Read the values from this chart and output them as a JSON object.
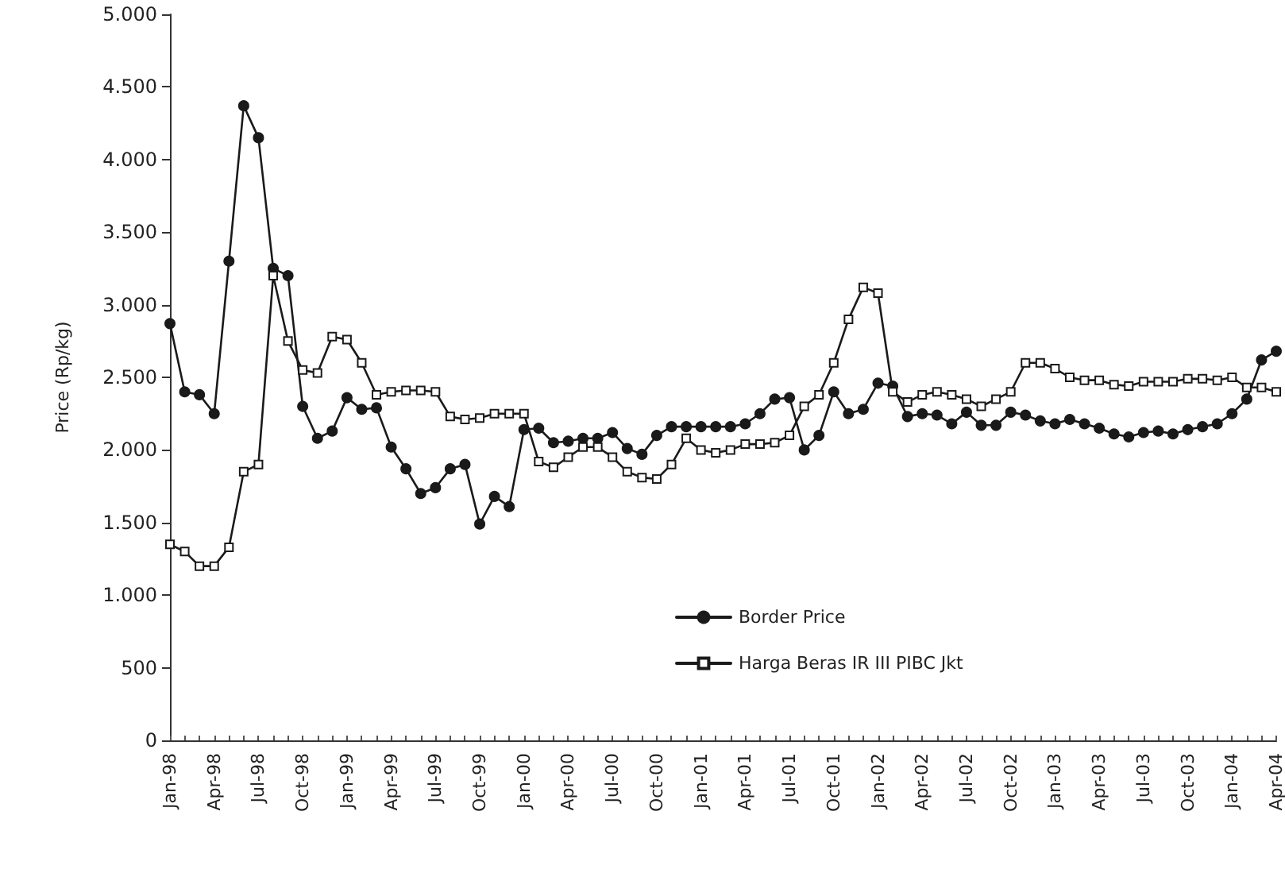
{
  "chart_data": {
    "type": "line",
    "ylabel": "Price (Rp/kg)",
    "categories": [
      "Jan-98",
      null,
      null,
      "Apr-98",
      null,
      null,
      "Jul-98",
      null,
      null,
      "Oct-98",
      null,
      null,
      "Jan-99",
      null,
      null,
      "Apr-99",
      null,
      null,
      "Jul-99",
      null,
      null,
      "Oct-99",
      null,
      null,
      "Jan-00",
      null,
      null,
      "Apr-00",
      null,
      null,
      "Jul-00",
      null,
      null,
      "Oct-00",
      null,
      null,
      "Jan-01",
      null,
      null,
      "Apr-01",
      null,
      null,
      "Jul-01",
      null,
      null,
      "Oct-01",
      null,
      null,
      "Jan-02",
      null,
      null,
      "Apr-02",
      null,
      null,
      "Jul-02",
      null,
      null,
      "Oct-02",
      null,
      null,
      "Jan-03",
      null,
      null,
      "Apr-03",
      null,
      null,
      "Jul-03",
      null,
      null,
      "Oct-03",
      null,
      null,
      "Jan-04",
      null,
      null,
      "Apr-04"
    ],
    "series": [
      {
        "name": "Border Price",
        "color": "#1a1a1a",
        "marker": "circle",
        "values": [
          2870,
          2400,
          2380,
          2250,
          3300,
          4370,
          4150,
          3250,
          3200,
          2300,
          2080,
          2130,
          2360,
          2280,
          2290,
          2020,
          1870,
          1700,
          1740,
          1870,
          1900,
          1490,
          1680,
          1610,
          2140,
          2150,
          2050,
          2060,
          2080,
          2080,
          2120,
          2010,
          1970,
          2100,
          2160,
          2160,
          2160,
          2160,
          2160,
          2180,
          2250,
          2350,
          2360,
          2000,
          2100,
          2400,
          2250,
          2280,
          2460,
          2440,
          2230,
          2250,
          2240,
          2180,
          2260,
          2170,
          2170,
          2260,
          2240,
          2200,
          2180,
          2210,
          2180,
          2150,
          2110,
          2090,
          2120,
          2130,
          2110,
          2140,
          2160,
          2180,
          2250,
          2350,
          2620,
          2680
        ]
      },
      {
        "name": "Harga Beras IR III PIBC Jkt",
        "color": "#1a1a1a",
        "marker": "square",
        "values": [
          1350,
          1300,
          1200,
          1200,
          1330,
          1850,
          1900,
          3200,
          2750,
          2550,
          2530,
          2780,
          2760,
          2600,
          2380,
          2400,
          2410,
          2410,
          2400,
          2230,
          2210,
          2220,
          2250,
          2250,
          2250,
          1920,
          1880,
          1950,
          2020,
          2020,
          1950,
          1850,
          1810,
          1800,
          1900,
          2080,
          2000,
          1980,
          2000,
          2040,
          2040,
          2050,
          2100,
          2300,
          2380,
          2600,
          2900,
          3120,
          3080,
          2400,
          2330,
          2380,
          2400,
          2380,
          2350,
          2300,
          2350,
          2400,
          2600,
          2600,
          2560,
          2500,
          2480,
          2480,
          2450,
          2440,
          2470,
          2470,
          2470,
          2490,
          2490,
          2480,
          2500,
          2430,
          2430,
          2400
        ]
      }
    ],
    "ylim": [
      0,
      5000
    ],
    "yticks": [
      {
        "value": 0,
        "label": "0"
      },
      {
        "value": 500,
        "label": "500"
      },
      {
        "value": 1000,
        "label": "1.000"
      },
      {
        "value": 1500,
        "label": "1.500"
      },
      {
        "value": 2000,
        "label": "2.000"
      },
      {
        "value": 2500,
        "label": "2.500"
      },
      {
        "value": 3000,
        "label": "3.000"
      },
      {
        "value": 3500,
        "label": "3.500"
      },
      {
        "value": 4000,
        "label": "4.000"
      },
      {
        "value": 4500,
        "label": "4.500"
      },
      {
        "value": 5000,
        "label": "5.000"
      }
    ],
    "grid": false,
    "legend": "bottom",
    "line_style": "solid"
  }
}
